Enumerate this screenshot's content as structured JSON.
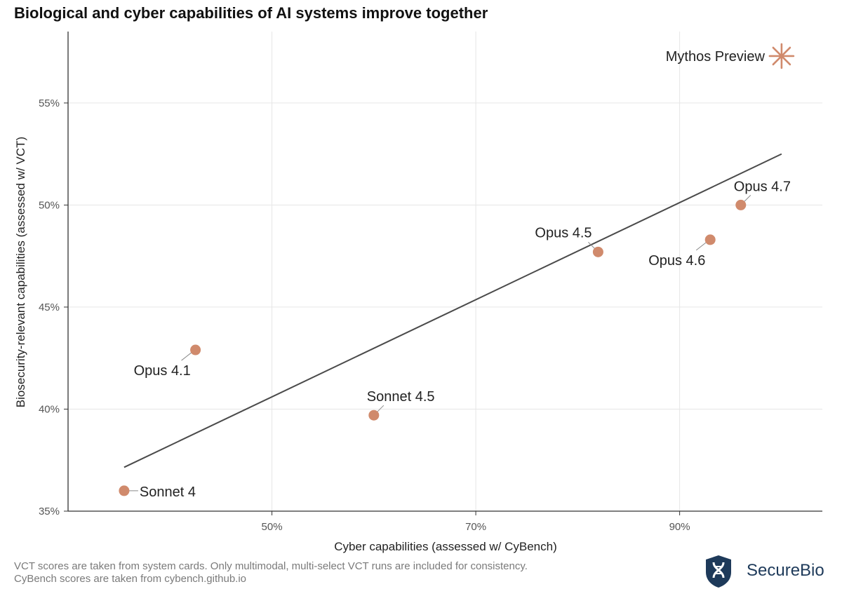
{
  "title": "Biological and cyber capabilities of AI systems improve together",
  "footnote": {
    "line1": "VCT scores are taken from system cards. Only multimodal, multi-select VCT runs are included for consistency.",
    "line2": "CyBench scores are taken from cybench.github.io"
  },
  "brand": {
    "name": "SecureBio",
    "logo_icon": "securebio-shield-icon",
    "color": "#1e3a5a"
  },
  "chart_data": {
    "type": "scatter",
    "title": "Biological and cyber capabilities of AI systems improve together",
    "xlabel": "Cyber capabilities (assessed w/ CyBench)",
    "ylabel": "Biosecurity-relevant capabilities (assessed w/ VCT)",
    "xlim": [
      30,
      104
    ],
    "ylim": [
      35,
      58.5
    ],
    "x_ticks": [
      {
        "value": 50,
        "label": "50%"
      },
      {
        "value": 70,
        "label": "70%"
      },
      {
        "value": 90,
        "label": "90%"
      }
    ],
    "y_ticks": [
      {
        "value": 35,
        "label": "35%"
      },
      {
        "value": 40,
        "label": "40%"
      },
      {
        "value": 45,
        "label": "45%"
      },
      {
        "value": 50,
        "label": "50%"
      },
      {
        "value": 55,
        "label": "55%"
      }
    ],
    "grid": true,
    "point_color": "#d08a6c",
    "trend_color": "#4a4a4a",
    "points": [
      {
        "label": "Sonnet 4",
        "x": 35.5,
        "y": 36.0,
        "label_pos": "right"
      },
      {
        "label": "Opus 4.1",
        "x": 42.5,
        "y": 42.9,
        "label_pos": "below-left"
      },
      {
        "label": "Sonnet 4.5",
        "x": 60.0,
        "y": 39.7,
        "label_pos": "above"
      },
      {
        "label": "Opus 4.5",
        "x": 82.0,
        "y": 47.7,
        "label_pos": "above-left"
      },
      {
        "label": "Opus 4.6",
        "x": 93.0,
        "y": 48.3,
        "label_pos": "below-left"
      },
      {
        "label": "Opus 4.7",
        "x": 96.0,
        "y": 50.0,
        "label_pos": "above"
      },
      {
        "label": "Mythos Preview",
        "x": 100.0,
        "y": 57.3,
        "label_pos": "left",
        "marker": "star"
      }
    ],
    "trendline": {
      "x": [
        35.5,
        100.0
      ],
      "y": [
        37.15,
        52.5
      ]
    }
  }
}
